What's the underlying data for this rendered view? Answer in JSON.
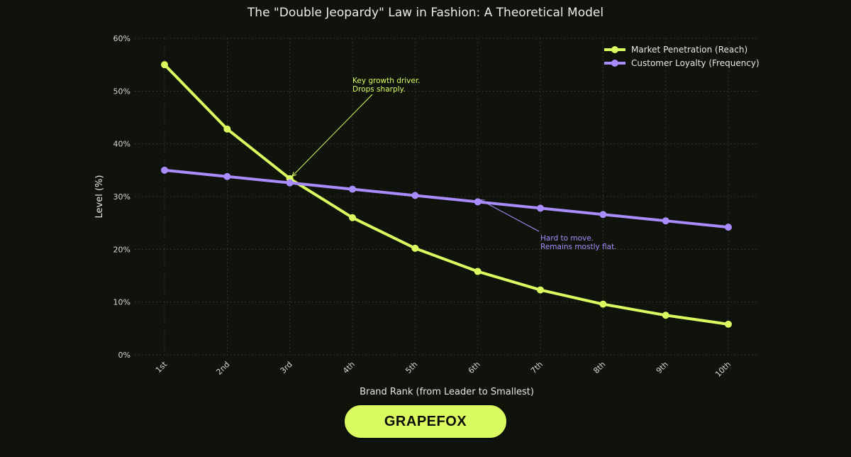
{
  "chart_data": {
    "type": "line",
    "title": "The \"Double Jeopardy\" Law in Fashion: A Theoretical Model",
    "xlabel": "Brand Rank (from Leader to Smallest)",
    "ylabel": "Level (%)",
    "categories": [
      "1st",
      "2nd",
      "3rd",
      "4th",
      "5th",
      "6th",
      "7th",
      "8th",
      "9th",
      "10th"
    ],
    "ylim": [
      0,
      60
    ],
    "yticks": [
      0,
      10,
      20,
      30,
      40,
      50,
      60
    ],
    "ytick_format": "%",
    "grid": true,
    "legend": "top-right",
    "series": [
      {
        "name": "Market Penetration (Reach)",
        "color": "#d9fb60",
        "values": [
          55.0,
          42.8,
          33.4,
          26.0,
          20.2,
          15.8,
          12.3,
          9.6,
          7.5,
          5.8
        ]
      },
      {
        "name": "Customer Loyalty (Frequency)",
        "color": "#a98dff",
        "values": [
          35.0,
          33.8,
          32.6,
          31.4,
          30.2,
          29.0,
          27.8,
          26.6,
          25.4,
          24.2
        ]
      }
    ],
    "annotations": [
      {
        "lines": [
          "Key growth driver.",
          "Drops sharply."
        ],
        "series": 0,
        "point": "3rd",
        "color": "#d9fb60"
      },
      {
        "lines": [
          "Hard to move.",
          "Remains mostly flat."
        ],
        "series": 1,
        "point": "6th",
        "color": "#a98dff"
      }
    ]
  },
  "footer": {
    "brand_label": "GRAPEFOX"
  },
  "colors": {
    "background": "#10130b",
    "grid": "#3a3d30"
  }
}
